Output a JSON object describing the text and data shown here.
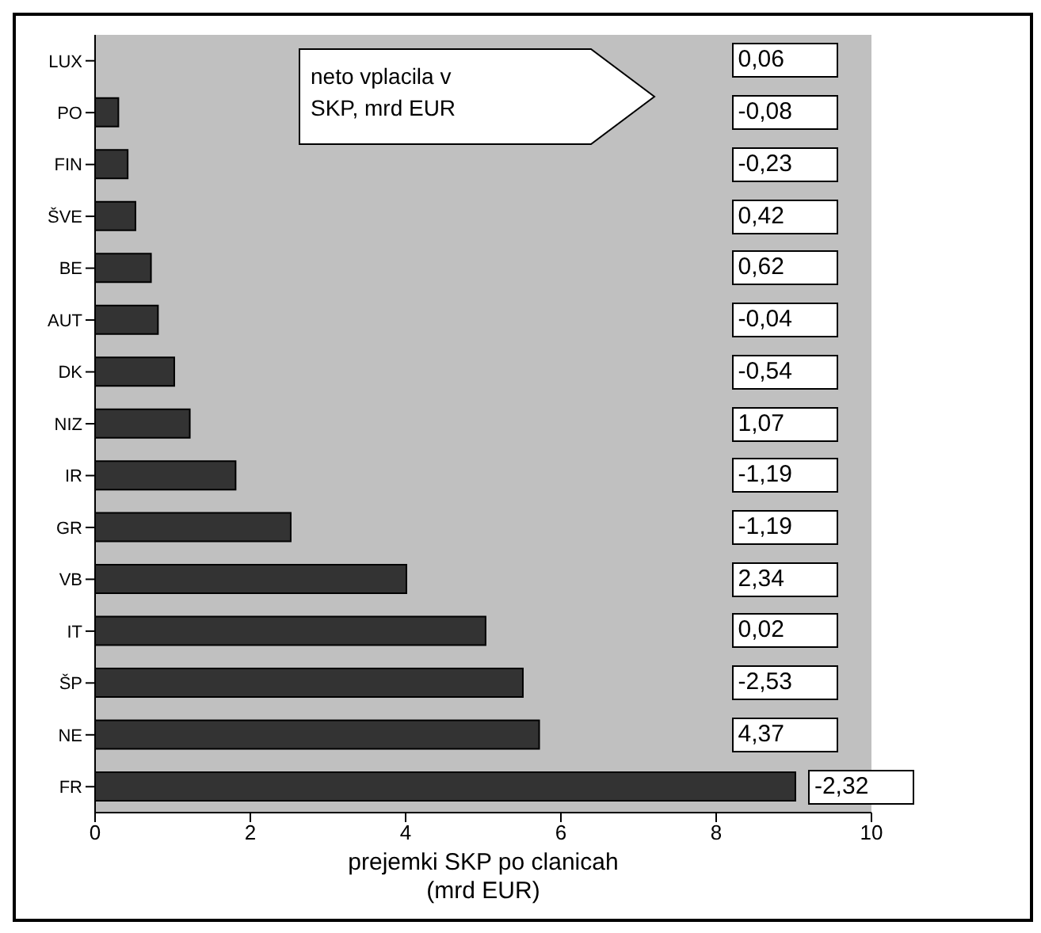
{
  "chart_data": {
    "type": "bar",
    "orientation": "horizontal",
    "xlabel": "prejemki SKP po clanicah\n(mrd EUR)",
    "categories": [
      "LUX",
      "PO",
      "FIN",
      "ŠVE",
      "BE",
      "AUT",
      "DK",
      "NIZ",
      "IR",
      "GR",
      "VB",
      "IT",
      "ŠP",
      "NE",
      "FR"
    ],
    "values": [
      0,
      0.3,
      0.42,
      0.52,
      0.72,
      0.81,
      1.02,
      1.22,
      1.81,
      2.52,
      4.01,
      5.03,
      5.51,
      5.72,
      9.02
    ],
    "color": "#333333",
    "xlim": [
      0,
      10
    ],
    "xticks": [
      0,
      2,
      4,
      6,
      8,
      10
    ],
    "grid": false,
    "legend": false,
    "annotations": [
      "neto vplacila v\nSKP, mrd EUR",
      "0,06",
      "-0,08",
      "-0,23",
      "0,42",
      "0,62",
      "-0,04",
      "-0,54",
      "1,07",
      "-1,19",
      "-1,19",
      "2,34",
      "0,02",
      "-2,53",
      "4,37",
      "-2,32"
    ]
  }
}
